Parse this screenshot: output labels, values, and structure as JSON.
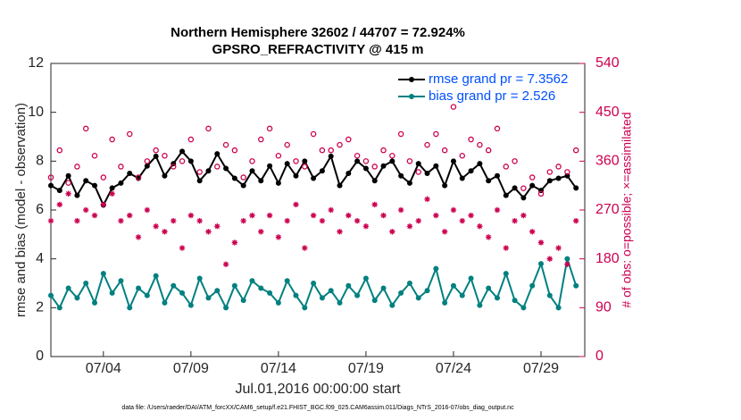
{
  "chart_data": {
    "type": "line",
    "title": "Northern Hemisphere 32602 / 44707 = 72.924%",
    "subtitle": "GPSRO_REFRACTIVITY @ 415 m",
    "x_label": "Jul.01,2016 00:00:00 start",
    "y_label": "rmse and bias (model - observation)",
    "y2_label": "# of obs: o=possible; ×=assimilated",
    "footnote": "data file: /Users/raeder/DAI/ATM_forcXX/CAM6_setup/f.e21.FHIST_BGC.f09_025.CAM6assim.011/Diags_NTrS_2016-07/obs_diag_output.nc",
    "x": [
      0,
      0.5,
      1,
      1.5,
      2,
      2.5,
      3,
      3.5,
      4,
      4.5,
      5,
      5.5,
      6,
      6.5,
      7,
      7.5,
      8,
      8.5,
      9,
      9.5,
      10,
      10.5,
      11,
      11.5,
      12,
      12.5,
      13,
      13.5,
      14,
      14.5,
      15,
      15.5,
      16,
      16.5,
      17,
      17.5,
      18,
      18.5,
      19,
      19.5,
      20,
      20.5,
      21,
      21.5,
      22,
      22.5,
      23,
      23.5,
      24,
      24.5,
      25,
      25.5,
      26,
      26.5,
      27,
      27.5,
      28,
      28.5,
      29,
      29.5,
      30
    ],
    "xlim": [
      0,
      30.5
    ],
    "xticks": [
      {
        "value": 3,
        "label": "07/04"
      },
      {
        "value": 8,
        "label": "07/09"
      },
      {
        "value": 13,
        "label": "07/14"
      },
      {
        "value": 18,
        "label": "07/19"
      },
      {
        "value": 23,
        "label": "07/24"
      },
      {
        "value": 28,
        "label": "07/29"
      }
    ],
    "ylim": [
      0,
      12
    ],
    "yticks": [
      0,
      2,
      4,
      6,
      8,
      10,
      12
    ],
    "y2lim": [
      0,
      540
    ],
    "y2ticks": [
      0,
      90,
      180,
      270,
      360,
      450,
      540
    ],
    "legend": "upper right",
    "series": [
      {
        "name": "rmse grand pr = 7.3562",
        "color": "#000000",
        "marker": "dot",
        "values": [
          7.0,
          6.8,
          7.4,
          6.6,
          7.2,
          7.0,
          6.2,
          6.9,
          7.1,
          7.5,
          7.3,
          7.8,
          8.2,
          7.4,
          7.9,
          8.4,
          8.0,
          7.2,
          7.6,
          8.3,
          7.7,
          7.3,
          7.0,
          7.6,
          7.2,
          7.8,
          7.1,
          7.9,
          7.4,
          8.0,
          7.3,
          7.6,
          8.2,
          7.0,
          7.5,
          8.0,
          7.7,
          7.2,
          7.8,
          8.0,
          7.4,
          7.1,
          7.9,
          7.5,
          7.8,
          7.0,
          8.0,
          7.3,
          7.6,
          7.9,
          7.2,
          7.4,
          6.6,
          6.9,
          6.5,
          7.0,
          6.8,
          7.2,
          7.3,
          7.4,
          6.9
        ]
      },
      {
        "name": "bias grand pr = 2.526",
        "color": "#008080",
        "marker": "dot",
        "values": [
          2.5,
          2.0,
          2.8,
          2.4,
          3.0,
          2.2,
          3.4,
          2.6,
          3.1,
          2.0,
          2.8,
          2.5,
          3.3,
          2.2,
          2.9,
          2.6,
          2.1,
          3.2,
          2.4,
          2.7,
          2.0,
          2.9,
          2.3,
          3.1,
          2.8,
          2.6,
          2.2,
          3.1,
          2.5,
          2.0,
          3.0,
          2.4,
          2.7,
          2.2,
          2.9,
          2.5,
          3.2,
          2.3,
          2.8,
          2.1,
          2.6,
          3.0,
          2.4,
          2.7,
          3.6,
          2.2,
          2.9,
          2.5,
          3.2,
          2.1,
          2.8,
          2.4,
          3.4,
          2.3,
          2.0,
          2.9,
          3.8,
          2.5,
          2.0,
          4.0,
          2.9
        ]
      },
      {
        "color": "#cc0050",
        "marker": "circle",
        "axis": "y2",
        "values": [
          330,
          380,
          320,
          350,
          420,
          370,
          330,
          400,
          350,
          410,
          330,
          360,
          380,
          370,
          350,
          360,
          400,
          340,
          420,
          350,
          390,
          380,
          330,
          360,
          400,
          420,
          370,
          390,
          360,
          350,
          410,
          380,
          380,
          390,
          400,
          370,
          360,
          350,
          380,
          370,
          410,
          360,
          340,
          390,
          410,
          380,
          460,
          370,
          400,
          390,
          380,
          420,
          350,
          360,
          310,
          330,
          300,
          340,
          350,
          340,
          380
        ]
      },
      {
        "color": "#cc0050",
        "marker": "asterisk",
        "axis": "y2",
        "values": [
          250,
          280,
          300,
          250,
          270,
          260,
          280,
          300,
          250,
          260,
          220,
          270,
          240,
          230,
          250,
          200,
          260,
          250,
          230,
          240,
          170,
          210,
          250,
          260,
          230,
          260,
          220,
          250,
          280,
          200,
          260,
          250,
          270,
          230,
          260,
          250,
          240,
          280,
          260,
          230,
          270,
          240,
          250,
          290,
          260,
          230,
          270,
          250,
          260,
          240,
          220,
          270,
          200,
          250,
          260,
          230,
          210,
          180,
          200,
          170,
          250
        ]
      }
    ]
  }
}
